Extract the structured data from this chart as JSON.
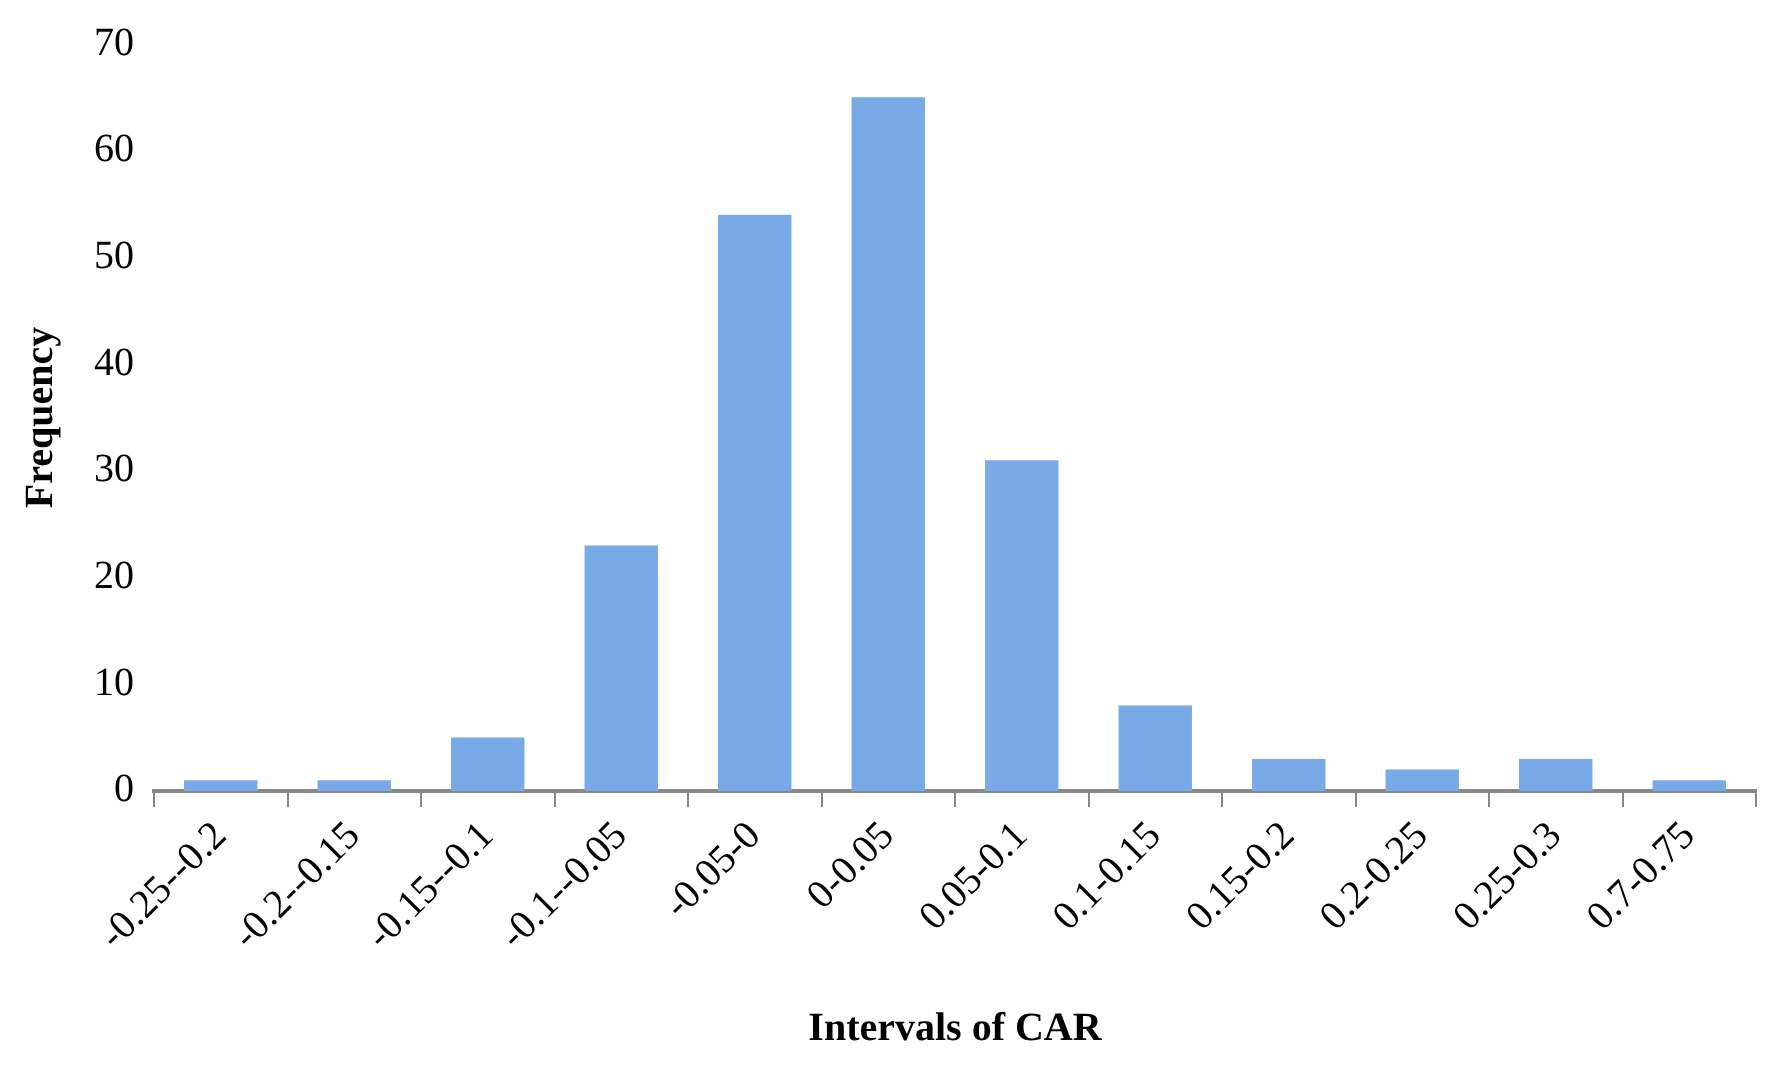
{
  "chart_data": {
    "type": "bar",
    "xlabel": "Intervals of CAR",
    "ylabel": "Frequency",
    "categories": [
      "-0.25--0.2",
      "-0.2--0.15",
      "-0.15--0.1",
      "-0.1--0.05",
      "-0.05-0",
      "0-0.05",
      "0.05-0.1",
      "0.1-0.15",
      "0.15-0.2",
      "0.2-0.25",
      "0.25-0.3",
      "0.7-0.75"
    ],
    "values": [
      1,
      1,
      5,
      23,
      54,
      65,
      31,
      8,
      3,
      2,
      3,
      1
    ],
    "color": "#78aae8",
    "ylim": [
      0,
      70
    ],
    "yticks": [
      0,
      10,
      20,
      30,
      40,
      50,
      60,
      70
    ],
    "grid": false,
    "legend": false
  }
}
